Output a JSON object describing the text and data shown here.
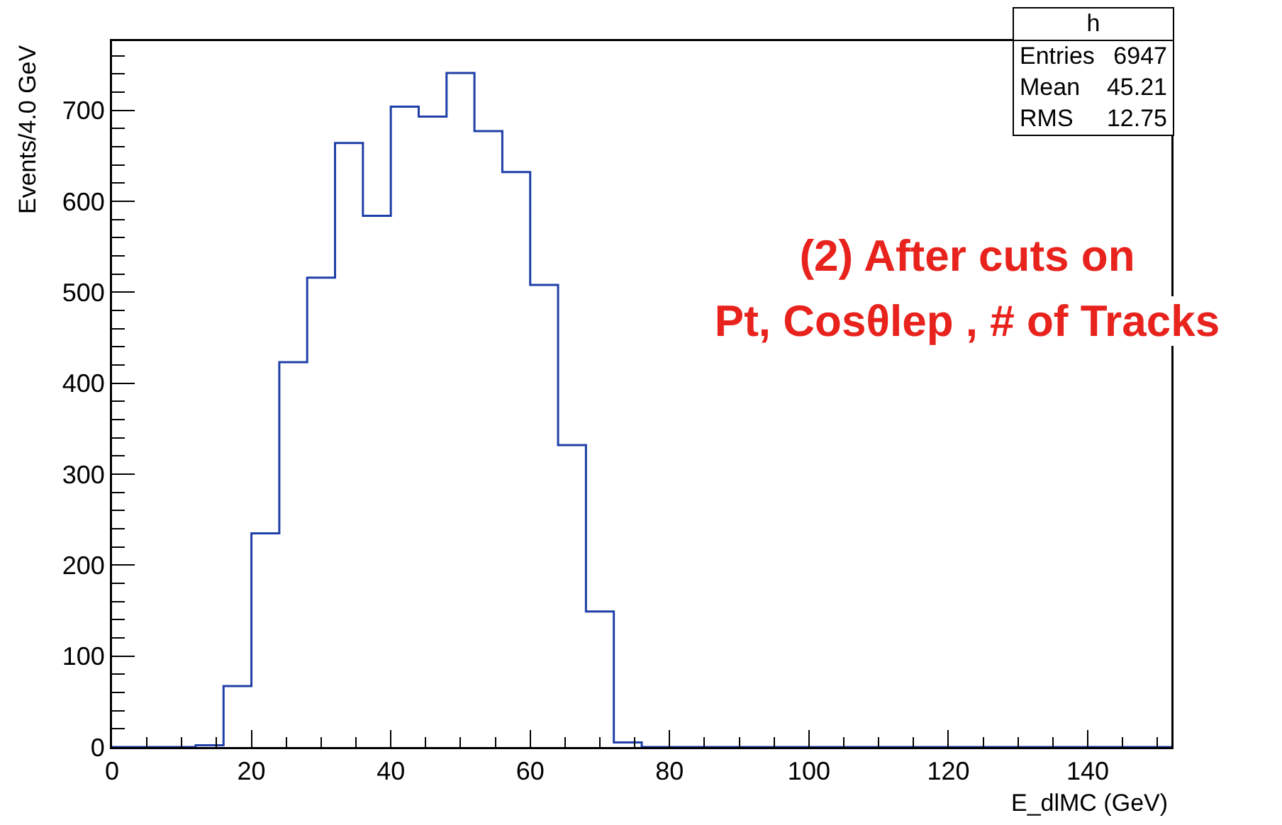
{
  "chart_data": {
    "type": "histogram",
    "bins": [
      0,
      4,
      8,
      12,
      16,
      20,
      24,
      28,
      32,
      36,
      40,
      44,
      48,
      52,
      56,
      60,
      64,
      68,
      72,
      76,
      80,
      84,
      88,
      92,
      96,
      100,
      104,
      108,
      112,
      116,
      120,
      124,
      128,
      132,
      136,
      140,
      144,
      148,
      152
    ],
    "values": [
      0,
      0,
      0,
      2,
      67,
      235,
      423,
      516,
      664,
      584,
      704,
      693,
      741,
      677,
      632,
      508,
      332,
      149,
      5,
      0,
      0,
      0,
      0,
      0,
      0,
      0,
      0,
      0,
      0,
      0,
      0,
      0,
      0,
      0,
      0,
      0,
      0,
      0
    ],
    "color": "#1f3fa8",
    "xlabel": "E_dlMC (GeV)",
    "ylabel": "Events/4.0 GeV",
    "xlim": [
      0,
      152
    ],
    "ylim": [
      0,
      776
    ],
    "xticks": [
      0,
      {
        "value": 5,
        "label": null
      },
      {
        "value": 10,
        "label": null
      },
      {
        "value": 15,
        "label": null
      },
      20,
      {
        "value": 25,
        "label": null
      },
      {
        "value": 30,
        "label": null
      },
      {
        "value": 35,
        "label": null
      },
      40,
      {
        "value": 45,
        "label": null
      },
      {
        "value": 50,
        "label": null
      },
      {
        "value": 55,
        "label": null
      },
      60,
      {
        "value": 65,
        "label": null
      },
      {
        "value": 70,
        "label": null
      },
      {
        "value": 75,
        "label": null
      },
      80,
      {
        "value": 85,
        "label": null
      },
      {
        "value": 90,
        "label": null
      },
      {
        "value": 95,
        "label": null
      },
      100,
      {
        "value": 105,
        "label": null
      },
      {
        "value": 110,
        "label": null
      },
      {
        "value": 115,
        "label": null
      },
      120,
      {
        "value": 125,
        "label": null
      },
      {
        "value": 130,
        "label": null
      },
      {
        "value": 135,
        "label": null
      },
      140,
      {
        "value": 145,
        "label": null
      },
      {
        "value": 150,
        "label": null
      }
    ],
    "yticks": [
      0,
      {
        "value": 20,
        "label": null
      },
      {
        "value": 40,
        "label": null
      },
      {
        "value": 60,
        "label": null
      },
      {
        "value": 80,
        "label": null
      },
      100,
      {
        "value": 120,
        "label": null
      },
      {
        "value": 140,
        "label": null
      },
      {
        "value": 160,
        "label": null
      },
      {
        "value": 180,
        "label": null
      },
      200,
      {
        "value": 220,
        "label": null
      },
      {
        "value": 240,
        "label": null
      },
      {
        "value": 260,
        "label": null
      },
      {
        "value": 280,
        "label": null
      },
      300,
      {
        "value": 320,
        "label": null
      },
      {
        "value": 340,
        "label": null
      },
      {
        "value": 360,
        "label": null
      },
      {
        "value": 380,
        "label": null
      },
      400,
      {
        "value": 420,
        "label": null
      },
      {
        "value": 440,
        "label": null
      },
      {
        "value": 460,
        "label": null
      },
      {
        "value": 480,
        "label": null
      },
      500,
      {
        "value": 520,
        "label": null
      },
      {
        "value": 540,
        "label": null
      },
      {
        "value": 560,
        "label": null
      },
      {
        "value": 580,
        "label": null
      },
      600,
      {
        "value": 620,
        "label": null
      },
      {
        "value": 640,
        "label": null
      },
      {
        "value": 660,
        "label": null
      },
      {
        "value": 680,
        "label": null
      },
      700,
      {
        "value": 720,
        "label": null
      },
      {
        "value": 740,
        "label": null
      },
      {
        "value": 760,
        "label": null
      }
    ],
    "grid": false,
    "annotations": [
      "h",
      "Entries 6947",
      "Mean 45.21",
      "RMS 12.75",
      "(2)  After cuts on\nPt, Cosθlep , # of Tracks"
    ]
  }
}
